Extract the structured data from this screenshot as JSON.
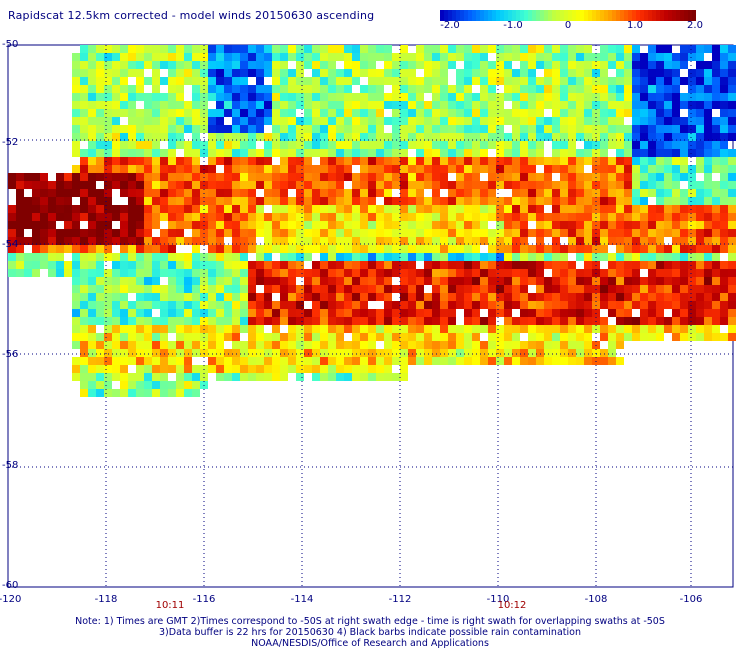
{
  "title": "Rapidscat 12.5km corrected - model winds 20150630 ascending",
  "colorbar": {
    "labels": [
      "-2.0",
      "-1.0",
      "0",
      "1.0",
      "2.0"
    ],
    "min": -2.0,
    "max": 2.0,
    "colors": [
      "#0000c0",
      "#0060ff",
      "#00c8ff",
      "#40ffd0",
      "#c0ff40",
      "#ffff00",
      "#ffa000",
      "#ff3000",
      "#c00000",
      "#800000"
    ]
  },
  "axes": {
    "lat_labels": [
      "-50",
      "-52",
      "-54",
      "-56",
      "-58",
      "-60"
    ],
    "lon_labels": [
      "-120",
      "-118",
      "-116",
      "-114",
      "-112",
      "-110",
      "-108",
      "-106"
    ],
    "lat_range": [
      -60,
      -50
    ],
    "lon_range": [
      -120,
      -105.2
    ]
  },
  "time_labels": [
    {
      "text": "10:11",
      "lon": -117.1
    },
    {
      "text": "10:12",
      "lon": -109.8
    }
  ],
  "notes": [
    "Note: 1) Times are GMT 2)Times correspond to -50S at right swath edge - time is right swath for overlapping swaths at -50S",
    "3)Data buffer is 22 hrs for 20150630 4) Black barbs indicate possible rain contamination",
    "NOAA/NESDIS/Office of Research and Applications"
  ]
}
